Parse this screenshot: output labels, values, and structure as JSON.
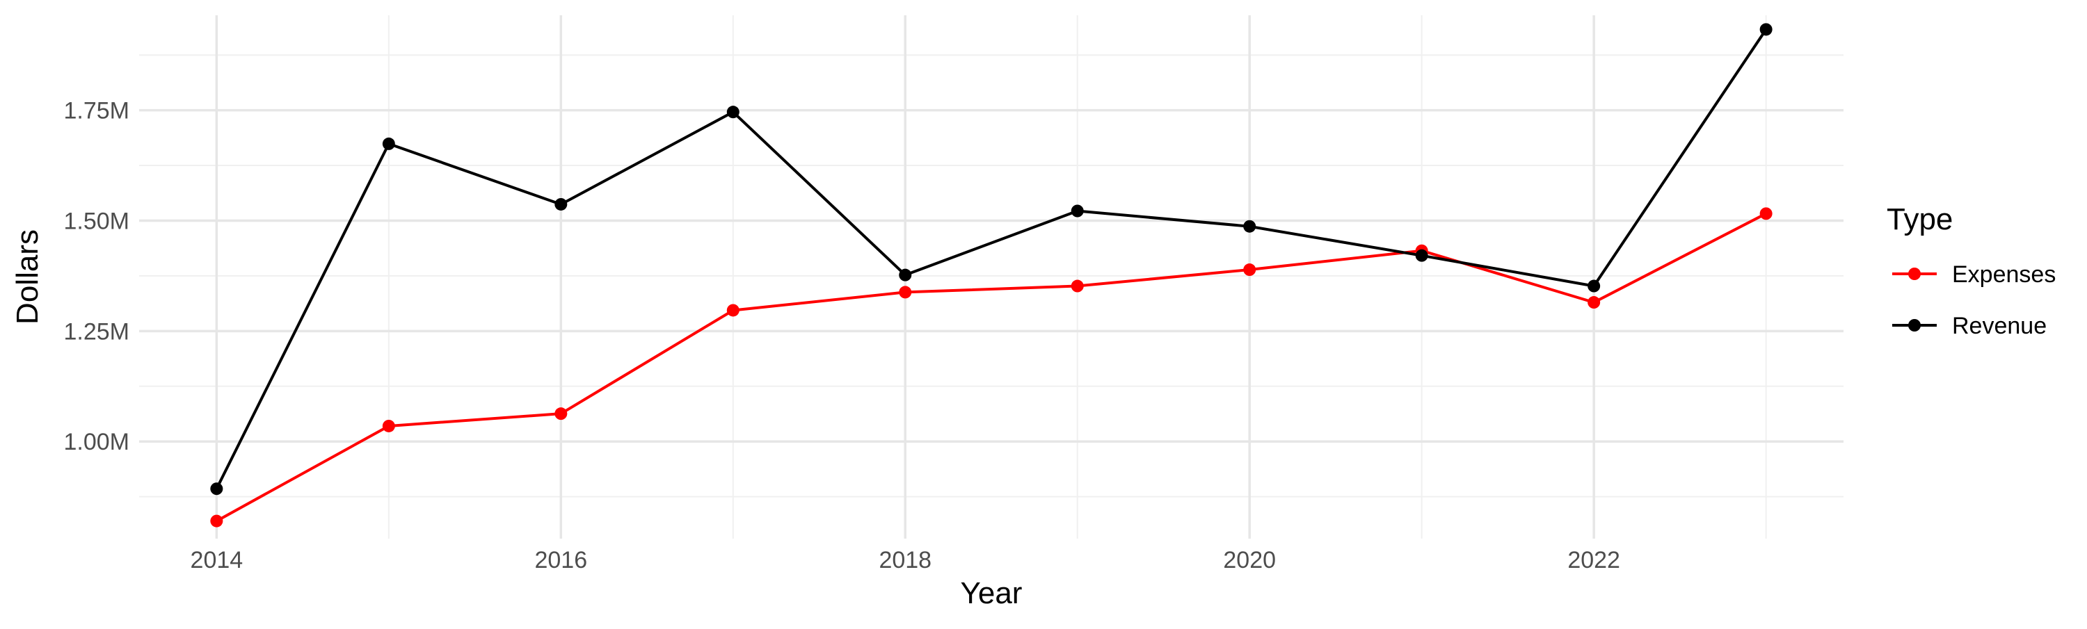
{
  "chart_data": {
    "type": "line",
    "title": "",
    "xlabel": "Year",
    "ylabel": "Dollars",
    "x": [
      2014,
      2015,
      2016,
      2017,
      2018,
      2019,
      2020,
      2021,
      2022,
      2023
    ],
    "xlim": [
      2013.55,
      2023.45
    ],
    "ylim": [
      780000,
      1965000
    ],
    "x_ticks": [
      2014,
      2016,
      2018,
      2020,
      2022
    ],
    "x_tick_labels": [
      "2014",
      "2016",
      "2018",
      "2020",
      "2022"
    ],
    "y_ticks": [
      1000000,
      1250000,
      1500000,
      1750000
    ],
    "y_tick_labels": [
      "1.00M",
      "1.25M",
      "1.50M",
      "1.75M"
    ],
    "grid": true,
    "legend": {
      "title": "Type",
      "placement": "right",
      "entries": [
        "Expenses",
        "Revenue"
      ]
    },
    "series": [
      {
        "name": "Expenses",
        "color": "#ff0000",
        "values": [
          820000,
          1035000,
          1063000,
          1297000,
          1338000,
          1352000,
          1389000,
          1432000,
          1315000,
          1516000
        ]
      },
      {
        "name": "Revenue",
        "color": "#000000",
        "values": [
          893000,
          1674000,
          1537000,
          1746000,
          1377000,
          1522000,
          1487000,
          1421000,
          1352000,
          1933000
        ]
      }
    ]
  }
}
